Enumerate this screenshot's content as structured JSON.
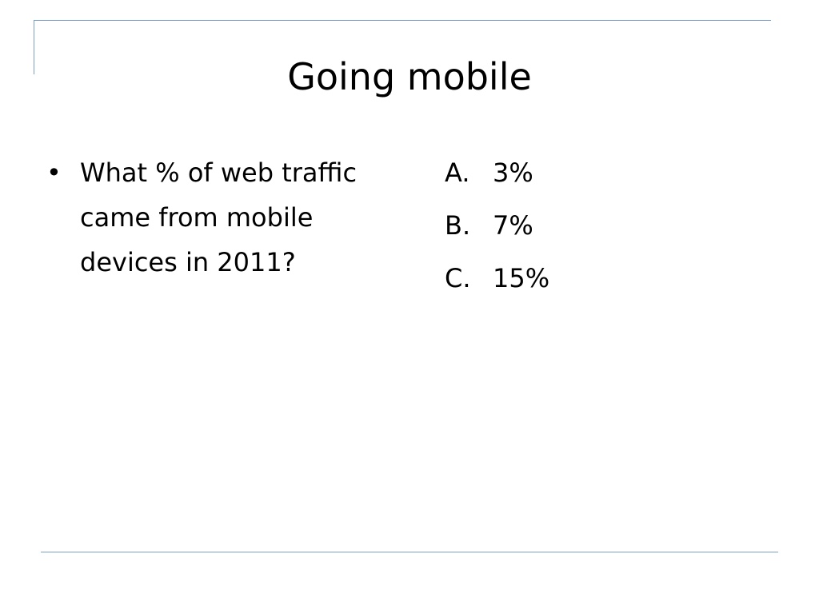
{
  "slide": {
    "title": "Going mobile",
    "question": "What % of web traffic came from mobile devices in 2011?",
    "bullet_glyph": "•",
    "answers": [
      {
        "letter": "A.",
        "text": "3%"
      },
      {
        "letter": "B.",
        "text": "7%"
      },
      {
        "letter": "C.",
        "text": "15%"
      }
    ],
    "colors": {
      "frame_line": "#7ba0c8",
      "text": "#000000",
      "background": "#ffffff"
    }
  }
}
